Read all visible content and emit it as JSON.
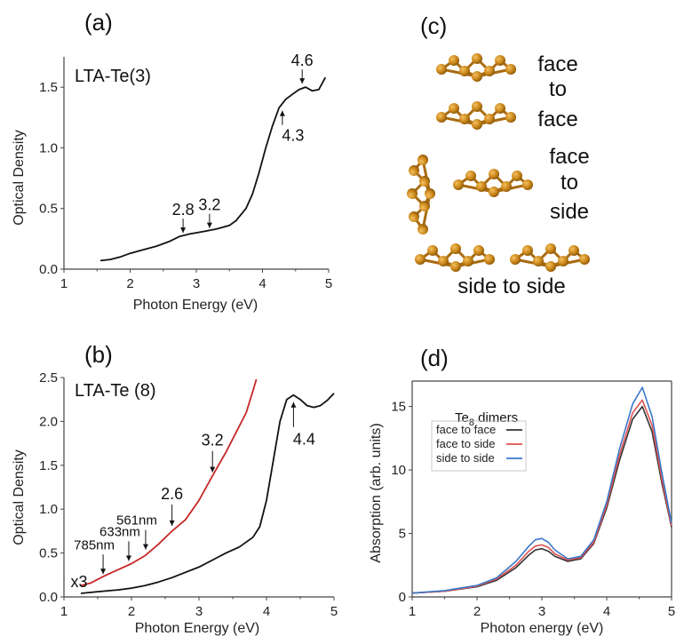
{
  "panels": {
    "a": "(a)",
    "b": "(b)",
    "c": "(c)",
    "d": "(d)"
  },
  "structures": {
    "face_to_face": [
      "face",
      "to",
      "face"
    ],
    "face_to_side": [
      "face",
      "to",
      "side"
    ],
    "side_to_side": "side to side"
  },
  "chart_data": [
    {
      "id": "a",
      "type": "line",
      "sample_label": "LTA-Te(3)",
      "xlabel": "Photon Energy (eV)",
      "ylabel": "Optical Density",
      "xlim": [
        1,
        5
      ],
      "ylim": [
        0,
        1.75
      ],
      "xticks": [
        1,
        2,
        3,
        4,
        5
      ],
      "yticks": [
        0.0,
        0.5,
        1.0,
        1.5
      ],
      "ytick_labels": [
        "0.0",
        "0.5",
        "1.0",
        "1.5"
      ],
      "series": [
        {
          "color": "#111111",
          "x": [
            1.55,
            1.7,
            1.85,
            2.0,
            2.2,
            2.4,
            2.6,
            2.75,
            2.9,
            3.1,
            3.3,
            3.5,
            3.6,
            3.75,
            3.85,
            3.95,
            4.05,
            4.15,
            4.25,
            4.35,
            4.45,
            4.55,
            4.65,
            4.75,
            4.85,
            4.95
          ],
          "y": [
            0.07,
            0.08,
            0.1,
            0.13,
            0.16,
            0.19,
            0.23,
            0.27,
            0.29,
            0.31,
            0.33,
            0.36,
            0.4,
            0.5,
            0.62,
            0.8,
            1.0,
            1.18,
            1.33,
            1.4,
            1.44,
            1.48,
            1.5,
            1.47,
            1.48,
            1.58
          ]
        }
      ],
      "annotations": [
        {
          "text": "2.8",
          "x": 2.8,
          "y": 0.27,
          "direction": "down"
        },
        {
          "text": "3.2",
          "x": 3.2,
          "y": 0.31,
          "direction": "down"
        },
        {
          "text": "4.3",
          "x": 4.3,
          "y": 1.35,
          "direction": "up"
        },
        {
          "text": "4.6",
          "x": 4.6,
          "y": 1.5,
          "direction": "down"
        }
      ]
    },
    {
      "id": "b",
      "type": "line",
      "sample_label": "LTA-Te (8)",
      "xlabel": "Photon Energy (eV)",
      "ylabel": "Optical Density",
      "xlim": [
        1,
        5
      ],
      "ylim": [
        0,
        2.5
      ],
      "xticks": [
        1,
        2,
        3,
        4,
        5
      ],
      "yticks": [
        0.0,
        0.5,
        1.0,
        1.5,
        2.0,
        2.5
      ],
      "ytick_labels": [
        "0.0",
        "0.5",
        "1.0",
        "1.5",
        "2.0",
        "2.5"
      ],
      "series": [
        {
          "color": "#c62828",
          "x": [
            1.25,
            1.4,
            1.6,
            1.8,
            2.0,
            2.2,
            2.4,
            2.6,
            2.8,
            3.0,
            3.2,
            3.4,
            3.6,
            3.7,
            3.8,
            3.85
          ],
          "y": [
            0.13,
            0.16,
            0.24,
            0.31,
            0.38,
            0.47,
            0.6,
            0.75,
            0.88,
            1.1,
            1.38,
            1.65,
            1.95,
            2.1,
            2.35,
            2.48
          ]
        },
        {
          "color": "#111111",
          "x": [
            1.25,
            1.5,
            1.8,
            2.0,
            2.2,
            2.4,
            2.6,
            2.8,
            3.0,
            3.2,
            3.4,
            3.6,
            3.8,
            3.9,
            4.0,
            4.1,
            4.2,
            4.3,
            4.4,
            4.5,
            4.6,
            4.7,
            4.8,
            4.9,
            5.0
          ],
          "y": [
            0.04,
            0.06,
            0.08,
            0.1,
            0.13,
            0.17,
            0.22,
            0.28,
            0.34,
            0.42,
            0.5,
            0.57,
            0.68,
            0.8,
            1.1,
            1.55,
            2.0,
            2.25,
            2.3,
            2.25,
            2.18,
            2.16,
            2.18,
            2.24,
            2.32
          ]
        }
      ],
      "annotations": [
        {
          "text": "x3",
          "x": 1.25,
          "y": 0.13,
          "kind": "label"
        },
        {
          "text": "785nm",
          "x": 1.58,
          "y": 0.22,
          "direction": "down"
        },
        {
          "text": "633nm",
          "x": 1.96,
          "y": 0.37,
          "direction": "down"
        },
        {
          "text": "561nm",
          "x": 2.21,
          "y": 0.5,
          "direction": "down"
        },
        {
          "text": "2.6",
          "x": 2.6,
          "y": 0.77,
          "direction": "down"
        },
        {
          "text": "3.2",
          "x": 3.2,
          "y": 1.38,
          "direction": "down"
        },
        {
          "text": "4.4",
          "x": 4.4,
          "y": 2.28,
          "direction": "up"
        }
      ]
    },
    {
      "id": "d",
      "type": "line",
      "legend_title": "Te",
      "legend_title_sub": "8",
      "legend_title_rest": " dimers",
      "legend_placement": "top-left",
      "xlabel": "Photon energy (eV)",
      "ylabel": "Absorption (arb. units)",
      "xlim": [
        1,
        5
      ],
      "ylim": [
        0,
        17
      ],
      "xticks": [
        1,
        2,
        3,
        4,
        5
      ],
      "yticks": [
        0,
        5,
        10,
        15
      ],
      "ytick_labels": [
        "0",
        "5",
        "10",
        "15"
      ],
      "x": [
        1.0,
        1.5,
        2.0,
        2.3,
        2.6,
        2.8,
        2.9,
        3.0,
        3.1,
        3.2,
        3.4,
        3.6,
        3.8,
        4.0,
        4.2,
        4.4,
        4.55,
        4.7,
        4.85,
        5.0
      ],
      "series": [
        {
          "name": "face to face",
          "color": "#333333",
          "values": [
            0.3,
            0.45,
            0.8,
            1.3,
            2.3,
            3.3,
            3.7,
            3.8,
            3.6,
            3.2,
            2.8,
            3.0,
            4.2,
            7.0,
            10.8,
            14.0,
            15.0,
            13.0,
            9.0,
            5.5
          ]
        },
        {
          "name": "face to side",
          "color": "#e05050",
          "values": [
            0.3,
            0.45,
            0.85,
            1.4,
            2.5,
            3.6,
            4.0,
            4.1,
            3.9,
            3.4,
            2.9,
            3.1,
            4.3,
            7.2,
            11.2,
            14.5,
            15.5,
            13.5,
            9.3,
            5.6
          ]
        },
        {
          "name": "side to side",
          "color": "#3a78c8",
          "values": [
            0.3,
            0.5,
            0.9,
            1.5,
            2.8,
            4.0,
            4.5,
            4.6,
            4.3,
            3.7,
            3.0,
            3.2,
            4.5,
            7.5,
            11.7,
            15.2,
            16.5,
            14.2,
            9.8,
            5.8
          ]
        }
      ]
    }
  ]
}
